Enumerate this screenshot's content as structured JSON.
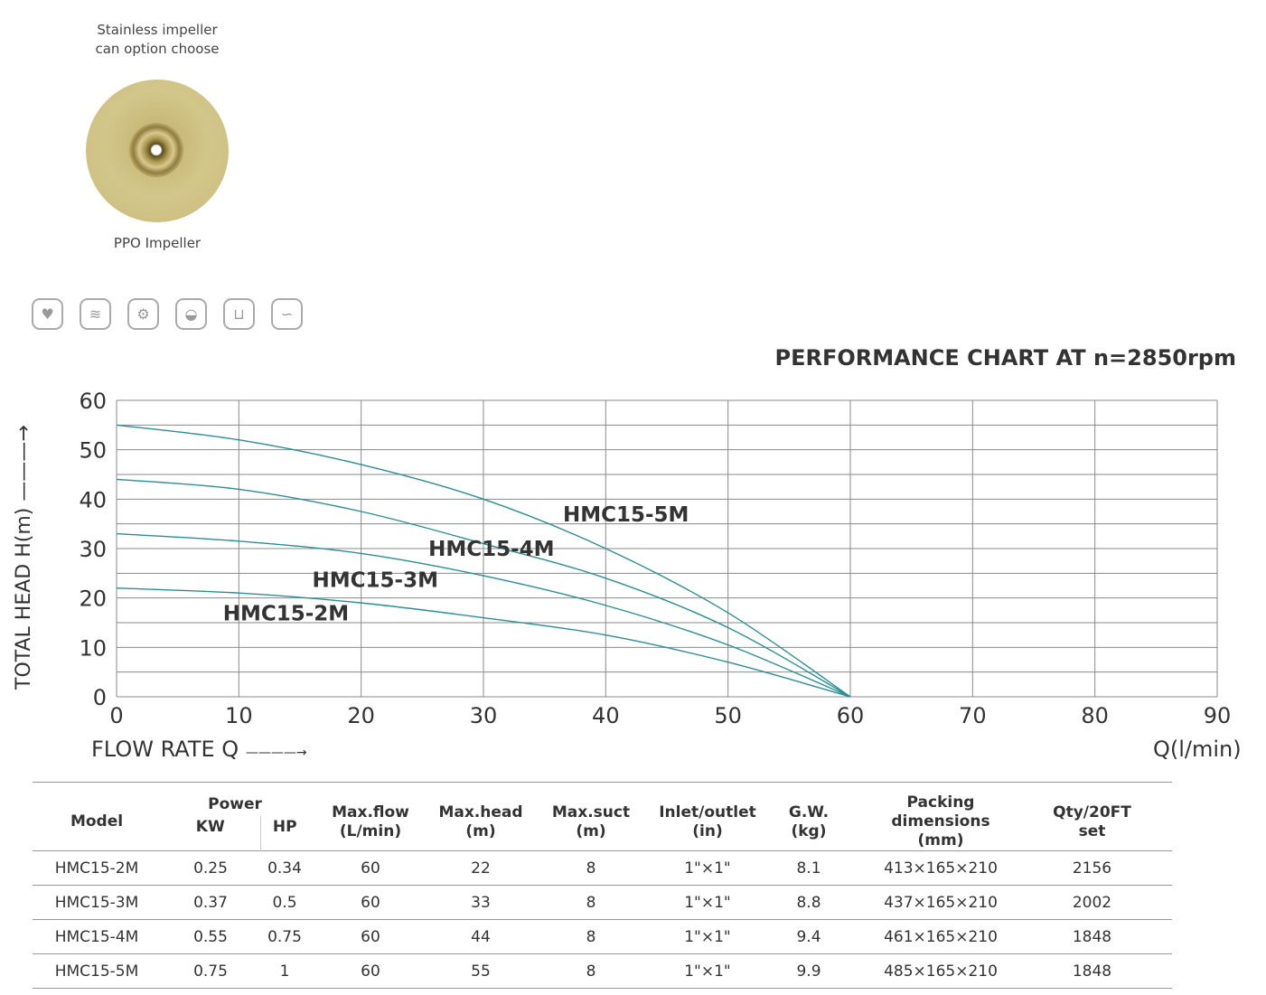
{
  "impeller": {
    "caption_top_1": "Stainless impeller",
    "caption_top_2": "can option choose",
    "caption_bottom": "PPO Impeller"
  },
  "icons": [
    "home-garden-icon",
    "farm-field-icon",
    "gears-icon",
    "wheelbarrow-icon",
    "water-tank-icon",
    "water-pipe-icon"
  ],
  "colors": {
    "curve": "#2a8f94",
    "grid": "#8a8a8a"
  },
  "chart_data": {
    "type": "line",
    "title": "PERFORMANCE CHART AT n=2850rpm",
    "ylabel": "TOTAL HEAD H(m)",
    "xlabel": "FLOW RATE Q",
    "xunit": "Q(l/min)",
    "xlim": [
      0,
      90
    ],
    "ylim": [
      0,
      60
    ],
    "xticks": [
      "0",
      "10",
      "20",
      "30",
      "40",
      "50",
      "60",
      "70",
      "80",
      "90"
    ],
    "yticks": [
      "0",
      "10",
      "20",
      "30",
      "40",
      "50",
      "60"
    ],
    "x": [
      0,
      10,
      20,
      30,
      40,
      50,
      60
    ],
    "series": [
      {
        "name": "HMC15-5M",
        "values": [
          55,
          52,
          47,
          40,
          30,
          17,
          0
        ]
      },
      {
        "name": "HMC15-4M",
        "values": [
          44,
          42,
          37.5,
          31,
          24,
          14,
          0
        ]
      },
      {
        "name": "HMC15-3M",
        "values": [
          33,
          31.5,
          29,
          24.5,
          18.5,
          10.5,
          0
        ]
      },
      {
        "name": "HMC15-2M",
        "values": [
          22,
          21,
          19,
          16,
          12.5,
          7,
          0
        ]
      }
    ]
  },
  "table": {
    "headers": {
      "model": "Model",
      "power": "Power",
      "kw": "KW",
      "hp": "HP",
      "flow": [
        "Max.flow",
        "(L/min)"
      ],
      "head": [
        "Max.head",
        "(m)"
      ],
      "suct": [
        "Max.suct",
        "(m)"
      ],
      "inlet": [
        "Inlet/outlet",
        "(in)"
      ],
      "gw": [
        "G.W.",
        "(kg)"
      ],
      "pack": [
        "Packing dimensions",
        "(mm)"
      ],
      "qty": [
        "Qty/20FT",
        "set"
      ]
    },
    "rows": [
      [
        "HMC15-2M",
        "0.25",
        "0.34",
        "60",
        "22",
        "8",
        "1\"×1\"",
        "8.1",
        "413×165×210",
        "2156"
      ],
      [
        "HMC15-3M",
        "0.37",
        "0.5",
        "60",
        "33",
        "8",
        "1\"×1\"",
        "8.8",
        "437×165×210",
        "2002"
      ],
      [
        "HMC15-4M",
        "0.55",
        "0.75",
        "60",
        "44",
        "8",
        "1\"×1\"",
        "9.4",
        "461×165×210",
        "1848"
      ],
      [
        "HMC15-5M",
        "0.75",
        "1",
        "60",
        "55",
        "8",
        "1\"×1\"",
        "9.9",
        "485×165×210",
        "1848"
      ]
    ]
  }
}
